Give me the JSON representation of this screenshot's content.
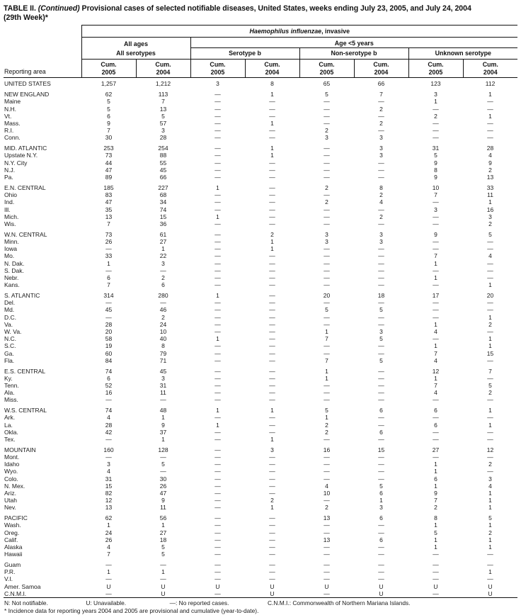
{
  "title": {
    "label": "TABLE II.",
    "continued": "(Continued)",
    "text": "Provisional cases of selected notifiable diseases, United States, weeks ending July 23, 2005, and July 24, 2004",
    "week": "(29th Week)*"
  },
  "header": {
    "reporting_area": "Reporting area",
    "disease_italic": "Haemophilus influenzae",
    "disease_rest": ", invasive",
    "all_ages": "All ages",
    "age_under5": "Age <5 years",
    "all_serotypes": "All serotypes",
    "serotype_b": "Serotype b",
    "non_serotype_b": "Non-serotype b",
    "unknown_serotype": "Unknown serotype",
    "cum": "Cum.",
    "years": [
      "2005",
      "2004"
    ]
  },
  "table": {
    "rows": [
      {
        "type": "total",
        "area": "UNITED STATES",
        "values": [
          "1,257",
          "1,212",
          "3",
          "8",
          "65",
          "66",
          "123",
          "112"
        ]
      },
      {
        "spacer": true
      },
      {
        "type": "region",
        "area": "NEW ENGLAND",
        "values": [
          "62",
          "113",
          "—",
          "1",
          "5",
          "7",
          "3",
          "1"
        ]
      },
      {
        "type": "state",
        "area": "Maine",
        "values": [
          "5",
          "7",
          "—",
          "—",
          "—",
          "—",
          "1",
          "—"
        ]
      },
      {
        "type": "state",
        "area": "N.H.",
        "values": [
          "5",
          "13",
          "—",
          "—",
          "—",
          "2",
          "—",
          "—"
        ]
      },
      {
        "type": "state",
        "area": "Vt.",
        "values": [
          "6",
          "5",
          "—",
          "—",
          "—",
          "—",
          "2",
          "1"
        ]
      },
      {
        "type": "state",
        "area": "Mass.",
        "values": [
          "9",
          "57",
          "—",
          "1",
          "—",
          "2",
          "—",
          "—"
        ]
      },
      {
        "type": "state",
        "area": "R.I.",
        "values": [
          "7",
          "3",
          "—",
          "—",
          "2",
          "—",
          "—",
          "—"
        ]
      },
      {
        "type": "state",
        "area": "Conn.",
        "values": [
          "30",
          "28",
          "—",
          "—",
          "3",
          "3",
          "—",
          "—"
        ]
      },
      {
        "spacer": true
      },
      {
        "type": "region",
        "area": "MID. ATLANTIC",
        "values": [
          "253",
          "254",
          "—",
          "1",
          "—",
          "3",
          "31",
          "28"
        ]
      },
      {
        "type": "state",
        "area": "Upstate N.Y.",
        "values": [
          "73",
          "88",
          "—",
          "1",
          "—",
          "3",
          "5",
          "4"
        ]
      },
      {
        "type": "state",
        "area": "N.Y. City",
        "values": [
          "44",
          "55",
          "—",
          "—",
          "—",
          "—",
          "9",
          "9"
        ]
      },
      {
        "type": "state",
        "area": "N.J.",
        "values": [
          "47",
          "45",
          "—",
          "—",
          "—",
          "—",
          "8",
          "2"
        ]
      },
      {
        "type": "state",
        "area": "Pa.",
        "values": [
          "89",
          "66",
          "—",
          "—",
          "—",
          "—",
          "9",
          "13"
        ]
      },
      {
        "spacer": true
      },
      {
        "type": "region",
        "area": "E.N. CENTRAL",
        "values": [
          "185",
          "227",
          "1",
          "—",
          "2",
          "8",
          "10",
          "33"
        ]
      },
      {
        "type": "state",
        "area": "Ohio",
        "values": [
          "83",
          "68",
          "—",
          "—",
          "—",
          "2",
          "7",
          "11"
        ]
      },
      {
        "type": "state",
        "area": "Ind.",
        "values": [
          "47",
          "34",
          "—",
          "—",
          "2",
          "4",
          "—",
          "1"
        ]
      },
      {
        "type": "state",
        "area": "Ill.",
        "values": [
          "35",
          "74",
          "—",
          "—",
          "—",
          "—",
          "3",
          "16"
        ]
      },
      {
        "type": "state",
        "area": "Mich.",
        "values": [
          "13",
          "15",
          "1",
          "—",
          "—",
          "2",
          "—",
          "3"
        ]
      },
      {
        "type": "state",
        "area": "Wis.",
        "values": [
          "7",
          "36",
          "—",
          "—",
          "—",
          "—",
          "—",
          "2"
        ]
      },
      {
        "spacer": true
      },
      {
        "type": "region",
        "area": "W.N. CENTRAL",
        "values": [
          "73",
          "61",
          "—",
          "2",
          "3",
          "3",
          "9",
          "5"
        ]
      },
      {
        "type": "state",
        "area": "Minn.",
        "values": [
          "26",
          "27",
          "—",
          "1",
          "3",
          "3",
          "—",
          "—"
        ]
      },
      {
        "type": "state",
        "area": "Iowa",
        "values": [
          "—",
          "1",
          "—",
          "1",
          "—",
          "—",
          "—",
          "—"
        ]
      },
      {
        "type": "state",
        "area": "Mo.",
        "values": [
          "33",
          "22",
          "—",
          "—",
          "—",
          "—",
          "7",
          "4"
        ]
      },
      {
        "type": "state",
        "area": "N. Dak.",
        "values": [
          "1",
          "3",
          "—",
          "—",
          "—",
          "—",
          "1",
          "—"
        ]
      },
      {
        "type": "state",
        "area": "S. Dak.",
        "values": [
          "—",
          "—",
          "—",
          "—",
          "—",
          "—",
          "—",
          "—"
        ]
      },
      {
        "type": "state",
        "area": "Nebr.",
        "values": [
          "6",
          "2",
          "—",
          "—",
          "—",
          "—",
          "1",
          "—"
        ]
      },
      {
        "type": "state",
        "area": "Kans.",
        "values": [
          "7",
          "6",
          "—",
          "—",
          "—",
          "—",
          "—",
          "1"
        ]
      },
      {
        "spacer": true
      },
      {
        "type": "region",
        "area": "S. ATLANTIC",
        "values": [
          "314",
          "280",
          "1",
          "—",
          "20",
          "18",
          "17",
          "20"
        ]
      },
      {
        "type": "state",
        "area": "Del.",
        "values": [
          "—",
          "—",
          "—",
          "—",
          "—",
          "—",
          "—",
          "—"
        ]
      },
      {
        "type": "state",
        "area": "Md.",
        "values": [
          "45",
          "46",
          "—",
          "—",
          "5",
          "5",
          "—",
          "—"
        ]
      },
      {
        "type": "state",
        "area": "D.C.",
        "values": [
          "—",
          "2",
          "—",
          "—",
          "—",
          "—",
          "—",
          "1"
        ]
      },
      {
        "type": "state",
        "area": "Va.",
        "values": [
          "28",
          "24",
          "—",
          "—",
          "—",
          "—",
          "1",
          "2"
        ]
      },
      {
        "type": "state",
        "area": "W. Va.",
        "values": [
          "20",
          "10",
          "—",
          "—",
          "1",
          "3",
          "4",
          "—"
        ]
      },
      {
        "type": "state",
        "area": "N.C.",
        "values": [
          "58",
          "40",
          "1",
          "—",
          "7",
          "5",
          "—",
          "1"
        ]
      },
      {
        "type": "state",
        "area": "S.C.",
        "values": [
          "19",
          "8",
          "—",
          "—",
          "—",
          "—",
          "1",
          "1"
        ]
      },
      {
        "type": "state",
        "area": "Ga.",
        "values": [
          "60",
          "79",
          "—",
          "—",
          "—",
          "—",
          "7",
          "15"
        ]
      },
      {
        "type": "state",
        "area": "Fla.",
        "values": [
          "84",
          "71",
          "—",
          "—",
          "7",
          "5",
          "4",
          "—"
        ]
      },
      {
        "spacer": true
      },
      {
        "type": "region",
        "area": "E.S. CENTRAL",
        "values": [
          "74",
          "45",
          "—",
          "—",
          "1",
          "—",
          "12",
          "7"
        ]
      },
      {
        "type": "state",
        "area": "Ky.",
        "values": [
          "6",
          "3",
          "—",
          "—",
          "1",
          "—",
          "1",
          "—"
        ]
      },
      {
        "type": "state",
        "area": "Tenn.",
        "values": [
          "52",
          "31",
          "—",
          "—",
          "—",
          "—",
          "7",
          "5"
        ]
      },
      {
        "type": "state",
        "area": "Ala.",
        "values": [
          "16",
          "11",
          "—",
          "—",
          "—",
          "—",
          "4",
          "2"
        ]
      },
      {
        "type": "state",
        "area": "Miss.",
        "values": [
          "—",
          "—",
          "—",
          "—",
          "—",
          "—",
          "—",
          "—"
        ]
      },
      {
        "spacer": true
      },
      {
        "type": "region",
        "area": "W.S. CENTRAL",
        "values": [
          "74",
          "48",
          "1",
          "1",
          "5",
          "6",
          "6",
          "1"
        ]
      },
      {
        "type": "state",
        "area": "Ark.",
        "values": [
          "4",
          "1",
          "—",
          "—",
          "1",
          "—",
          "—",
          "—"
        ]
      },
      {
        "type": "state",
        "area": "La.",
        "values": [
          "28",
          "9",
          "1",
          "—",
          "2",
          "—",
          "6",
          "1"
        ]
      },
      {
        "type": "state",
        "area": "Okla.",
        "values": [
          "42",
          "37",
          "—",
          "—",
          "2",
          "6",
          "—",
          "—"
        ]
      },
      {
        "type": "state",
        "area": "Tex.",
        "values": [
          "—",
          "1",
          "—",
          "1",
          "—",
          "—",
          "—",
          "—"
        ]
      },
      {
        "spacer": true
      },
      {
        "type": "region",
        "area": "MOUNTAIN",
        "values": [
          "160",
          "128",
          "—",
          "3",
          "16",
          "15",
          "27",
          "12"
        ]
      },
      {
        "type": "state",
        "area": "Mont.",
        "values": [
          "—",
          "—",
          "—",
          "—",
          "—",
          "—",
          "—",
          "—"
        ]
      },
      {
        "type": "state",
        "area": "Idaho",
        "values": [
          "3",
          "5",
          "—",
          "—",
          "—",
          "—",
          "1",
          "2"
        ]
      },
      {
        "type": "state",
        "area": "Wyo.",
        "values": [
          "4",
          "—",
          "—",
          "—",
          "—",
          "—",
          "1",
          "—"
        ]
      },
      {
        "type": "state",
        "area": "Colo.",
        "values": [
          "31",
          "30",
          "—",
          "—",
          "—",
          "—",
          "6",
          "3"
        ]
      },
      {
        "type": "state",
        "area": "N. Mex.",
        "values": [
          "15",
          "26",
          "—",
          "—",
          "4",
          "5",
          "1",
          "4"
        ]
      },
      {
        "type": "state",
        "area": "Ariz.",
        "values": [
          "82",
          "47",
          "—",
          "—",
          "10",
          "6",
          "9",
          "1"
        ]
      },
      {
        "type": "state",
        "area": "Utah",
        "values": [
          "12",
          "9",
          "—",
          "2",
          "—",
          "1",
          "7",
          "1"
        ]
      },
      {
        "type": "state",
        "area": "Nev.",
        "values": [
          "13",
          "11",
          "—",
          "1",
          "2",
          "3",
          "2",
          "1"
        ]
      },
      {
        "spacer": true
      },
      {
        "type": "region",
        "area": "PACIFIC",
        "values": [
          "62",
          "56",
          "—",
          "—",
          "13",
          "6",
          "8",
          "5"
        ]
      },
      {
        "type": "state",
        "area": "Wash.",
        "values": [
          "1",
          "1",
          "—",
          "—",
          "—",
          "—",
          "1",
          "1"
        ]
      },
      {
        "type": "state",
        "area": "Oreg.",
        "values": [
          "24",
          "27",
          "—",
          "—",
          "—",
          "—",
          "5",
          "2"
        ]
      },
      {
        "type": "state",
        "area": "Calif.",
        "values": [
          "26",
          "18",
          "—",
          "—",
          "13",
          "6",
          "1",
          "1"
        ]
      },
      {
        "type": "state",
        "area": "Alaska",
        "values": [
          "4",
          "5",
          "—",
          "—",
          "—",
          "—",
          "1",
          "1"
        ]
      },
      {
        "type": "state",
        "area": "Hawaii",
        "values": [
          "7",
          "5",
          "—",
          "—",
          "—",
          "—",
          "—",
          "—"
        ]
      },
      {
        "spacer": true
      },
      {
        "type": "territory",
        "area": "Guam",
        "values": [
          "—",
          "—",
          "—",
          "—",
          "—",
          "—",
          "—",
          "—"
        ]
      },
      {
        "type": "territory",
        "area": "P.R.",
        "values": [
          "1",
          "1",
          "—",
          "—",
          "—",
          "—",
          "—",
          "1"
        ]
      },
      {
        "type": "territory",
        "area": "V.I.",
        "values": [
          "—",
          "—",
          "—",
          "—",
          "—",
          "—",
          "—",
          "—"
        ]
      },
      {
        "type": "territory",
        "area": "Amer. Samoa",
        "values": [
          "U",
          "U",
          "U",
          "U",
          "U",
          "U",
          "U",
          "U"
        ]
      },
      {
        "type": "territory",
        "area": "C.N.M.I.",
        "values": [
          "—",
          "U",
          "—",
          "U",
          "—",
          "U",
          "—",
          "U"
        ]
      }
    ]
  },
  "footnotes": {
    "not_notifiable": "N: Not notifiable.",
    "unavailable": "U: Unavailable.",
    "no_reported": "—: No reported cases.",
    "cnmi": "C.N.M.I.: Commonwealth of Northern Mariana Islands.",
    "incidence": "* Incidence data for reporting years 2004 and 2005 are provisional and cumulative (year-to-date)."
  }
}
